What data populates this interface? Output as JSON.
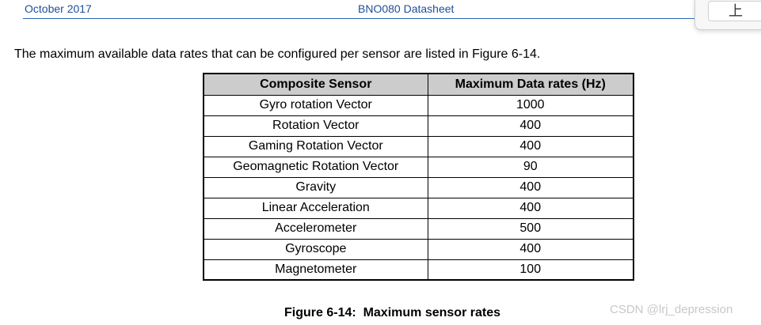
{
  "header": {
    "date": "October 2017",
    "doc_title": "BNO080 Datasheet"
  },
  "popup": {
    "button_glyph": "上"
  },
  "intro_text": "The maximum available data rates that can be configured per sensor are listed in Figure 6-14.",
  "table": {
    "headers": [
      "Composite Sensor",
      "Maximum Data rates (Hz)"
    ],
    "rows": [
      [
        "Gyro rotation Vector",
        "1000"
      ],
      [
        "Rotation Vector",
        "400"
      ],
      [
        "Gaming Rotation Vector",
        "400"
      ],
      [
        "Geomagnetic Rotation Vector",
        "90"
      ],
      [
        "Gravity",
        "400"
      ],
      [
        "Linear Acceleration",
        "400"
      ],
      [
        "Accelerometer",
        "500"
      ],
      [
        "Gyroscope",
        "400"
      ],
      [
        "Magnetometer",
        "100"
      ]
    ]
  },
  "caption": "Figure 6-14:  Maximum sensor rates",
  "watermark": "CSDN @lrj_depression"
}
